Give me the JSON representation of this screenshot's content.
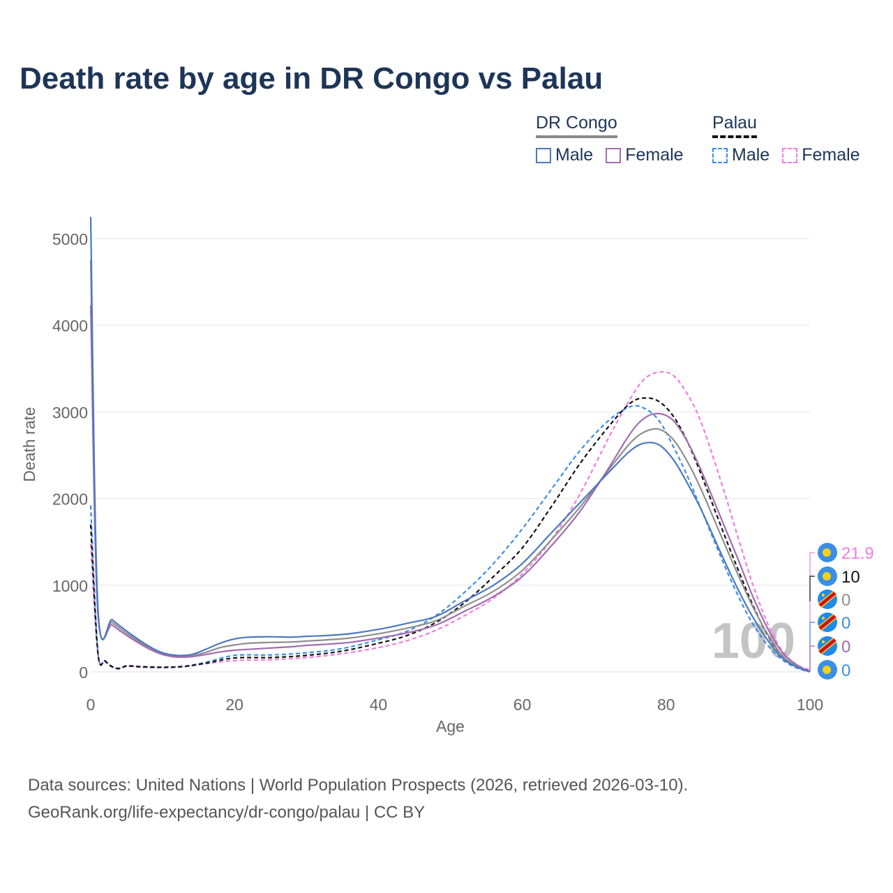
{
  "title": "Death rate by age in DR Congo vs Palau",
  "legend": {
    "groups": [
      {
        "name": "DR Congo",
        "style": "solid",
        "items": [
          {
            "label": "Male",
            "color": "#4a78c0"
          },
          {
            "label": "Female",
            "color": "#a36bb0"
          }
        ]
      },
      {
        "name": "Palau",
        "style": "dashed",
        "items": [
          {
            "label": "Male",
            "color": "#3a8ee6"
          },
          {
            "label": "Female",
            "color": "#f07ce0"
          }
        ]
      }
    ]
  },
  "year_watermark": "100",
  "source": {
    "line1": "Data sources: United Nations | World Population Prospects (2026, retrieved 2026-03-10).",
    "line2": "GeoRank.org/life-expectancy/dr-congo/palau | CC BY"
  },
  "chart_data": {
    "type": "line",
    "title": "Death rate by age in DR Congo vs Palau",
    "xlabel": "Age",
    "ylabel": "Death rate",
    "xlim": [
      0,
      100
    ],
    "ylim": [
      0,
      5400
    ],
    "xticks": [
      0,
      20,
      40,
      60,
      80,
      100
    ],
    "yticks": [
      0,
      1000,
      2000,
      3000,
      4000,
      5000
    ],
    "grid": true,
    "series": [
      {
        "name": "DR Congo Male",
        "color": "#4a78c0",
        "dash": false,
        "x": [
          0,
          1,
          3,
          5,
          8,
          10,
          12,
          14,
          16,
          18,
          20,
          22,
          25,
          28,
          30,
          33,
          36,
          40,
          44,
          48,
          52,
          56,
          60,
          64,
          68,
          72,
          75,
          77,
          79,
          81,
          83,
          85,
          88,
          90,
          92,
          94,
          96,
          98,
          100
        ],
        "y": [
          5250,
          750,
          600,
          470,
          300,
          220,
          190,
          200,
          260,
          330,
          380,
          400,
          405,
          400,
          410,
          420,
          440,
          490,
          560,
          640,
          820,
          1000,
          1250,
          1600,
          1950,
          2300,
          2550,
          2640,
          2620,
          2450,
          2170,
          1850,
          1300,
          950,
          640,
          380,
          170,
          60,
          0
        ]
      },
      {
        "name": "DR Congo Female",
        "color": "#a36bb0",
        "dash": false,
        "x": [
          0,
          1,
          3,
          5,
          8,
          10,
          12,
          14,
          16,
          18,
          20,
          22,
          25,
          28,
          30,
          33,
          36,
          40,
          44,
          48,
          52,
          56,
          60,
          64,
          68,
          72,
          75,
          77,
          79,
          81,
          83,
          85,
          88,
          90,
          92,
          94,
          96,
          98,
          100
        ],
        "y": [
          4230,
          680,
          540,
          420,
          270,
          200,
          170,
          175,
          200,
          230,
          250,
          260,
          275,
          290,
          305,
          320,
          340,
          390,
          450,
          540,
          700,
          870,
          1100,
          1450,
          1850,
          2350,
          2750,
          2930,
          2980,
          2900,
          2650,
          2300,
          1700,
          1300,
          880,
          520,
          240,
          90,
          0
        ]
      },
      {
        "name": "DR Congo (Total)",
        "color": "#8e8e8e",
        "dash": false,
        "x": [
          0,
          1,
          3,
          5,
          8,
          10,
          12,
          14,
          16,
          18,
          20,
          22,
          25,
          28,
          30,
          33,
          36,
          40,
          44,
          48,
          52,
          56,
          60,
          64,
          68,
          72,
          75,
          77,
          79,
          81,
          83,
          85,
          88,
          90,
          92,
          94,
          96,
          98,
          100
        ],
        "y": [
          4750,
          710,
          570,
          445,
          285,
          210,
          180,
          185,
          225,
          280,
          310,
          330,
          340,
          345,
          355,
          370,
          390,
          440,
          505,
          590,
          760,
          930,
          1170,
          1520,
          1900,
          2330,
          2640,
          2770,
          2800,
          2680,
          2420,
          2080,
          1500,
          1120,
          760,
          450,
          200,
          75,
          0
        ]
      },
      {
        "name": "Palau Male",
        "color": "#3a8ee6",
        "dash": true,
        "x": [
          0,
          1,
          2,
          3,
          4,
          5,
          7,
          10,
          13,
          16,
          20,
          25,
          30,
          35,
          40,
          44,
          48,
          52,
          56,
          60,
          64,
          68,
          72,
          75,
          77,
          79,
          81,
          83,
          85,
          88,
          90,
          92,
          94,
          96,
          98,
          100
        ],
        "y": [
          1920,
          230,
          130,
          60,
          40,
          70,
          60,
          55,
          65,
          110,
          190,
          195,
          220,
          270,
          370,
          470,
          650,
          920,
          1250,
          1650,
          2100,
          2550,
          2900,
          3060,
          3040,
          2900,
          2600,
          2250,
          1850,
          1250,
          880,
          560,
          320,
          150,
          50,
          0
        ]
      },
      {
        "name": "Palau Female",
        "color": "#f07ce0",
        "dash": true,
        "x": [
          0,
          1,
          2,
          3,
          4,
          5,
          7,
          10,
          13,
          16,
          20,
          25,
          30,
          35,
          40,
          44,
          48,
          52,
          56,
          60,
          64,
          68,
          72,
          75,
          77,
          79,
          81,
          83,
          85,
          88,
          90,
          92,
          94,
          96,
          98,
          100
        ],
        "y": [
          1480,
          210,
          120,
          55,
          35,
          65,
          55,
          50,
          60,
          95,
          130,
          140,
          165,
          210,
          280,
          360,
          480,
          650,
          850,
          1130,
          1520,
          2050,
          2700,
          3150,
          3380,
          3460,
          3420,
          3200,
          2850,
          2100,
          1550,
          1020,
          580,
          260,
          90,
          22
        ]
      },
      {
        "name": "Palau (Total)",
        "color": "#111111",
        "dash": true,
        "x": [
          0,
          1,
          2,
          3,
          4,
          5,
          7,
          10,
          13,
          16,
          20,
          25,
          30,
          35,
          40,
          44,
          48,
          52,
          56,
          60,
          64,
          68,
          72,
          75,
          77,
          79,
          81,
          83,
          85,
          88,
          90,
          92,
          94,
          96,
          98,
          100
        ],
        "y": [
          1700,
          220,
          125,
          58,
          38,
          68,
          58,
          52,
          62,
          100,
          160,
          165,
          190,
          240,
          330,
          420,
          570,
          800,
          1100,
          1430,
          1900,
          2400,
          2830,
          3100,
          3160,
          3120,
          2950,
          2650,
          2250,
          1600,
          1180,
          780,
          440,
          200,
          70,
          10
        ]
      }
    ],
    "end_labels": [
      {
        "text": "21.9",
        "color": "#f07ce0",
        "flag": "palau"
      },
      {
        "text": "10",
        "color": "#111111",
        "flag": "palau"
      },
      {
        "text": "0",
        "color": "#8e8e8e",
        "flag": "drc"
      },
      {
        "text": "0",
        "color": "#3a8ee6",
        "flag": "drc"
      },
      {
        "text": "0",
        "color": "#a36bb0",
        "flag": "drc"
      },
      {
        "text": "0",
        "color": "#3a8ee6",
        "flag": "palau"
      }
    ]
  }
}
